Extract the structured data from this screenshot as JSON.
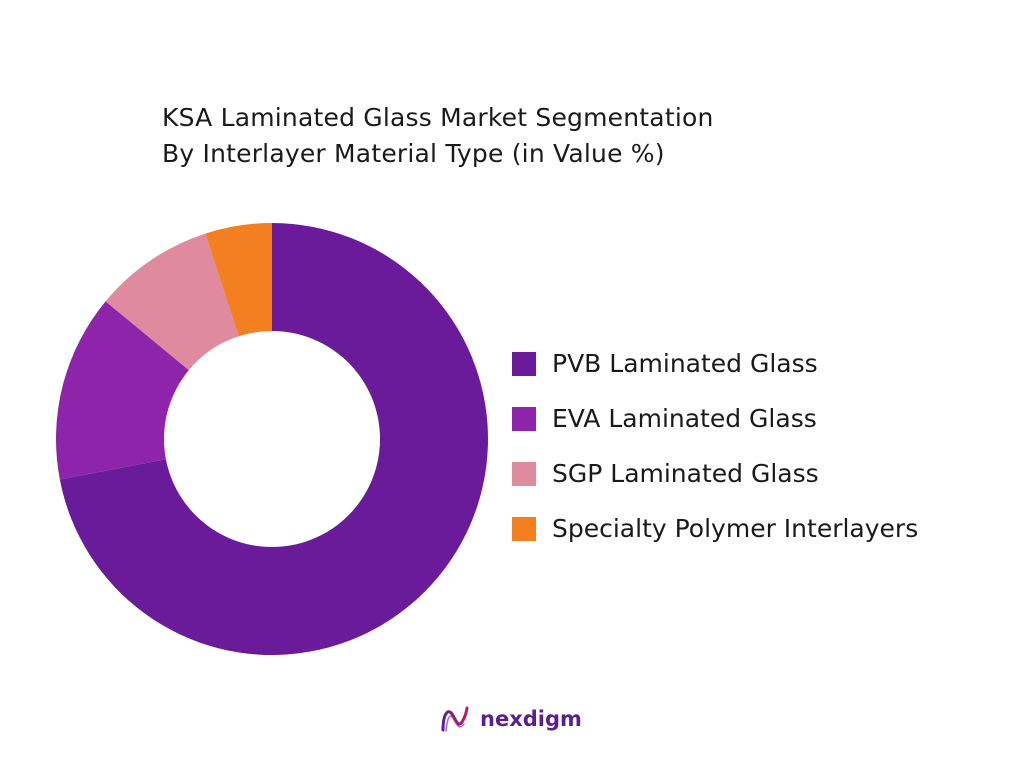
{
  "chart_data": {
    "type": "pie",
    "variant": "donut",
    "title": "KSA Laminated Glass Market Segmentation",
    "subtitle": "By Interlayer Material Type  (in Value %)",
    "categories": [
      "PVB Laminated Glass",
      "EVA Laminated Glass",
      "SGP Laminated Glass",
      "Specialty Polymer Interlayers"
    ],
    "values": [
      72,
      14,
      9,
      5
    ],
    "colors": [
      "#6a1b9a",
      "#8e24aa",
      "#e08aa0",
      "#f47f20"
    ],
    "legend": "right"
  },
  "brand": {
    "name": "nexdigm",
    "logo_icon": "nexdigm-wave-icon",
    "color": "#5b1f8f"
  }
}
